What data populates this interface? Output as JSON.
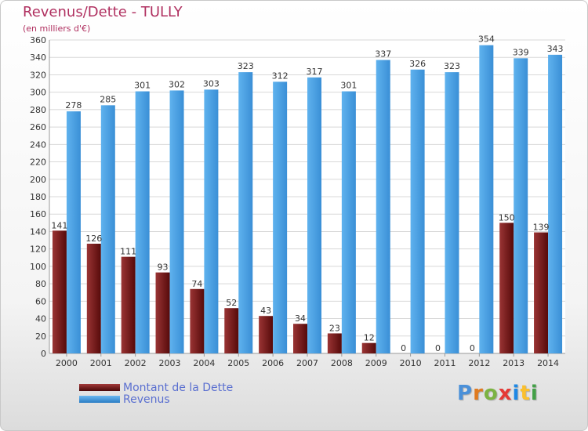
{
  "header": {
    "title": "Revenus/Dette - TULLY",
    "subtitle": "(en milliers d'€)"
  },
  "logo": {
    "letters": [
      "P",
      "r",
      "o",
      "x",
      "i",
      "t",
      "i"
    ],
    "colors": [
      "#4a90d9",
      "#e07b20",
      "#7cb342",
      "#e53935",
      "#1e88e5",
      "#fbc02d",
      "#43a047"
    ]
  },
  "chart_data": {
    "type": "bar",
    "categories": [
      "2000",
      "2001",
      "2002",
      "2003",
      "2004",
      "2005",
      "2006",
      "2007",
      "2008",
      "2009",
      "2010",
      "2011",
      "2012",
      "2013",
      "2014"
    ],
    "series": [
      {
        "name": "Montant de la Dette",
        "color": "#7a1a1a",
        "values": [
          141,
          126,
          111,
          93,
          74,
          52,
          43,
          34,
          23,
          12,
          0,
          0,
          0,
          150,
          139
        ]
      },
      {
        "name": "Revenus",
        "color": "#4aa3e8",
        "values": [
          278,
          285,
          301,
          302,
          303,
          323,
          312,
          317,
          301,
          337,
          326,
          323,
          354,
          339,
          343
        ]
      }
    ],
    "yticks": [
      "0",
      "20",
      "40",
      "60",
      "80",
      "100",
      "120",
      "140",
      "160",
      "180",
      "200",
      "220",
      "240",
      "260",
      "280",
      "300",
      "320",
      "340",
      "360"
    ],
    "ylim": [
      0,
      360
    ],
    "grid": true,
    "legend_position": "bottom-left"
  }
}
